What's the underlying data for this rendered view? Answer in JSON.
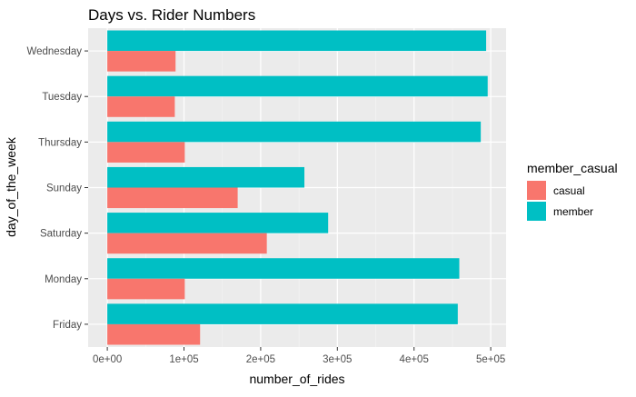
{
  "chart_data": {
    "type": "bar",
    "orientation": "horizontal",
    "title": "Days vs. Rider Numbers",
    "xlabel": "number_of_rides",
    "ylabel": "day_of_the_week",
    "categories": [
      "Wednesday",
      "Tuesday",
      "Thursday",
      "Sunday",
      "Saturday",
      "Monday",
      "Friday"
    ],
    "series": [
      {
        "name": "member",
        "color": "#00BFC4",
        "values": [
          494000,
          496000,
          487000,
          257000,
          288000,
          459000,
          457000
        ]
      },
      {
        "name": "casual",
        "color": "#F8766D",
        "values": [
          89000,
          88000,
          101000,
          170000,
          208000,
          101000,
          121000
        ]
      }
    ],
    "xlim": [
      -25000,
      520000
    ],
    "xticks": [
      0,
      100000,
      200000,
      300000,
      400000,
      500000
    ],
    "xtick_labels": [
      "0e+00",
      "1e+05",
      "2e+05",
      "3e+05",
      "4e+05",
      "5e+05"
    ],
    "grid": true,
    "legend": {
      "title": "member_casual",
      "position": "right",
      "items": [
        {
          "label": "casual",
          "color": "#F8766D"
        },
        {
          "label": "member",
          "color": "#00BFC4"
        }
      ]
    }
  }
}
